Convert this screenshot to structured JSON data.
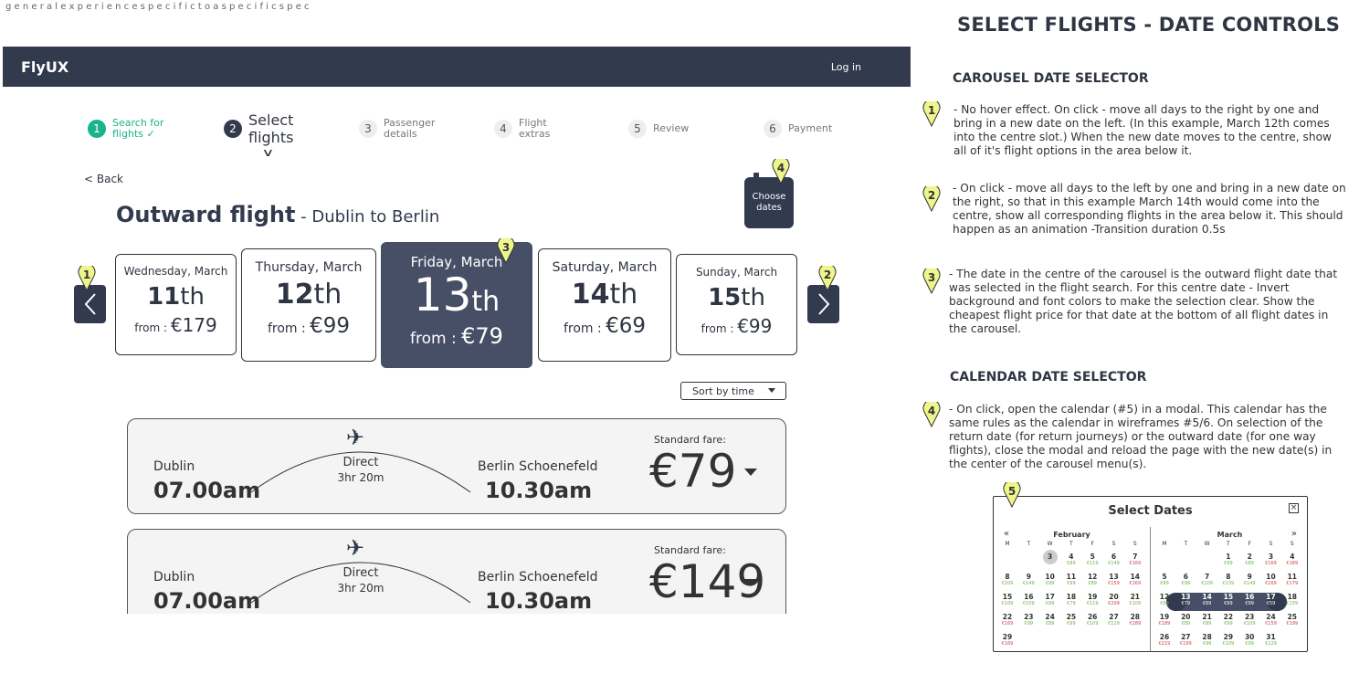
{
  "top_note": "g e n e r a l   e x p e r i e n c e   s p e c i f i c   t o   a   s p e c i f i c   s p e c",
  "app": {
    "logo": "FlyUX",
    "login": "Log in"
  },
  "steps": [
    {
      "num": "1",
      "label": "Search for flights ✓"
    },
    {
      "num": "2",
      "label": "Select flights"
    },
    {
      "num": "3",
      "label": "Passenger details"
    },
    {
      "num": "4",
      "label": "Flight extras"
    },
    {
      "num": "5",
      "label": "Review"
    },
    {
      "num": "6",
      "label": "Payment"
    }
  ],
  "back": "< Back",
  "title": {
    "main": "Outward flight",
    "sub": " - Dublin to Berlin"
  },
  "choose_dates": "Choose dates",
  "dates": [
    {
      "name": "Wednesday, March",
      "day": "11",
      "suffix": "th",
      "from": "from : ",
      "price": "€179"
    },
    {
      "name": "Thursday, March",
      "day": "12",
      "suffix": "th",
      "from": "from : ",
      "price": "€99"
    },
    {
      "name": "Friday, March",
      "day": "13",
      "suffix": "th",
      "from": "from : ",
      "price": "€79"
    },
    {
      "name": "Saturday, March",
      "day": "14",
      "suffix": "th",
      "from": "from : ",
      "price": "€69"
    },
    {
      "name": "Sunday, March",
      "day": "15",
      "suffix": "th",
      "from": "from : ",
      "price": "€99"
    }
  ],
  "sort": "Sort by time",
  "flights": [
    {
      "from": "Dublin",
      "dep": "07.00am",
      "type": "Direct",
      "duration": "3hr 20m",
      "to": "Berlin Schoenefeld",
      "arr": "10.30am",
      "fare_label": "Standard fare:",
      "price": "€79"
    },
    {
      "from": "Dublin",
      "dep": "07.00am",
      "type": "Direct",
      "duration": "3hr 20m",
      "to": "Berlin Schoenefeld",
      "arr": "10.30am",
      "fare_label": "Standard fare:",
      "price": "€149"
    }
  ],
  "markers": [
    "1",
    "2",
    "3",
    "4",
    "5"
  ],
  "spec": {
    "title": "SELECT FLIGHTS - DATE CONTROLS",
    "carousel_heading": "CAROUSEL DATE SELECTOR",
    "note1": "- No hover effect. On click - move all days to the right by one and bring in a new date on the left. (In this example, March 12th comes into the centre slot.) When the new date moves to the centre, show all of it's flight options in the area below it.",
    "note2": "- On click - move all days to the left by one and bring in a new date on the right, so that in this example March 14th would come into the centre, show all corresponding flights in the area below it. This should happen as an animation -Transition duration 0.5s",
    "note3": "- The date in the centre of the carousel is the outward flight date that was selected in the flight search. For this centre date - Invert background and font colors to make the selection clear. Show the cheapest flight price for that date at the bottom of all flight dates in the carousel.",
    "calendar_heading": "CALENDAR DATE SELECTOR",
    "note4": "- On click, open the calendar (#5) in a modal. This calendar has the same rules as the calendar in wireframes #5/6. On selection of the return date (for return journeys) or the outward date (for one way flights), close the modal and reload the page with the new date(s) in the center of the carousel menu(s)."
  },
  "calendar": {
    "title": "Select Dates",
    "close": "×",
    "prev": "«",
    "next": "»",
    "weekdays": [
      "M",
      "T",
      "W",
      "T",
      "F",
      "S",
      "S"
    ],
    "months": [
      {
        "name": "February",
        "weeks": [
          [
            null,
            null,
            {
              "d": "3",
              "p": ""
            },
            {
              "d": "4",
              "p": "€89",
              "c": "g"
            },
            {
              "d": "5",
              "p": "€119",
              "c": "g"
            },
            {
              "d": "6",
              "p": "€149",
              "c": "g"
            },
            {
              "d": "7",
              "p": "€169",
              "c": "r"
            }
          ],
          [
            {
              "d": "8",
              "p": "€109",
              "c": "g"
            },
            {
              "d": "9",
              "p": "€149",
              "c": "g"
            },
            {
              "d": "10",
              "p": "€99",
              "c": "g"
            },
            {
              "d": "11",
              "p": "€99",
              "c": "g"
            },
            {
              "d": "12",
              "p": "€89",
              "c": "g"
            },
            {
              "d": "13",
              "p": "€159",
              "c": "r"
            },
            {
              "d": "14",
              "p": "€169",
              "c": "r"
            }
          ],
          [
            {
              "d": "15",
              "p": "€109",
              "c": "g"
            },
            {
              "d": "16",
              "p": "€109",
              "c": "g"
            },
            {
              "d": "17",
              "p": "€99",
              "c": "g"
            },
            {
              "d": "18",
              "p": "€79",
              "c": "g"
            },
            {
              "d": "19",
              "p": "€119",
              "c": "g"
            },
            {
              "d": "20",
              "p": "€209",
              "c": "r"
            },
            {
              "d": "21",
              "p": "€109",
              "c": "g"
            }
          ],
          [
            {
              "d": "22",
              "p": "€169",
              "c": "r"
            },
            {
              "d": "23",
              "p": "€99",
              "c": "g"
            },
            {
              "d": "24",
              "p": "€89",
              "c": "g"
            },
            {
              "d": "25",
              "p": "€99",
              "c": "g"
            },
            {
              "d": "26",
              "p": "€109",
              "c": "g"
            },
            {
              "d": "27",
              "p": "€119",
              "c": "g"
            },
            {
              "d": "28",
              "p": "€189",
              "c": "r"
            }
          ],
          [
            {
              "d": "29",
              "p": "€169",
              "c": "r"
            },
            null,
            null,
            null,
            null,
            null,
            null
          ]
        ]
      },
      {
        "name": "March",
        "weeks": [
          [
            null,
            null,
            null,
            {
              "d": "1",
              "p": "€99",
              "c": "g"
            },
            {
              "d": "2",
              "p": "€89",
              "c": "g"
            },
            {
              "d": "3",
              "p": "€169",
              "c": "r"
            },
            {
              "d": "4",
              "p": "€189",
              "c": "r"
            }
          ],
          [
            {
              "d": "5",
              "p": "€89",
              "c": "g"
            },
            {
              "d": "6",
              "p": "€99",
              "c": "g"
            },
            {
              "d": "7",
              "p": "€109",
              "c": "g"
            },
            {
              "d": "8",
              "p": "€139",
              "c": "g"
            },
            {
              "d": "9",
              "p": "€149",
              "c": "g"
            },
            {
              "d": "10",
              "p": "€169",
              "c": "r"
            },
            {
              "d": "11",
              "p": "€179",
              "c": "r"
            }
          ],
          [
            {
              "d": "12",
              "p": "€99",
              "c": "g"
            },
            {
              "d": "13",
              "p": "€79",
              "c": "s"
            },
            {
              "d": "14",
              "p": "€69",
              "c": "s"
            },
            {
              "d": "15",
              "p": "€99",
              "c": "s"
            },
            {
              "d": "16",
              "p": "€99",
              "c": "s"
            },
            {
              "d": "17",
              "p": "€59",
              "c": "s"
            },
            {
              "d": "18",
              "p": "€139",
              "c": "g"
            }
          ],
          [
            {
              "d": "19",
              "p": "€189",
              "c": "r"
            },
            {
              "d": "20",
              "p": "€89",
              "c": "g"
            },
            {
              "d": "21",
              "p": "€89",
              "c": "g"
            },
            {
              "d": "22",
              "p": "€99",
              "c": "g"
            },
            {
              "d": "23",
              "p": "€109",
              "c": "g"
            },
            {
              "d": "24",
              "p": "€159",
              "c": "r"
            },
            {
              "d": "25",
              "p": "€199",
              "c": "r"
            }
          ],
          [
            {
              "d": "26",
              "p": "€219",
              "c": "r"
            },
            {
              "d": "27",
              "p": "€199",
              "c": "r"
            },
            {
              "d": "28",
              "p": "€99",
              "c": "g"
            },
            {
              "d": "29",
              "p": "€109",
              "c": "g"
            },
            {
              "d": "30",
              "p": "€99",
              "c": "g"
            },
            {
              "d": "31",
              "p": "€129",
              "c": "g"
            },
            null
          ]
        ]
      }
    ]
  },
  "colors": {
    "navy": "#323a4e",
    "center_card": "#474f66",
    "green": "#1ab38a",
    "pin": "#eef58a"
  }
}
